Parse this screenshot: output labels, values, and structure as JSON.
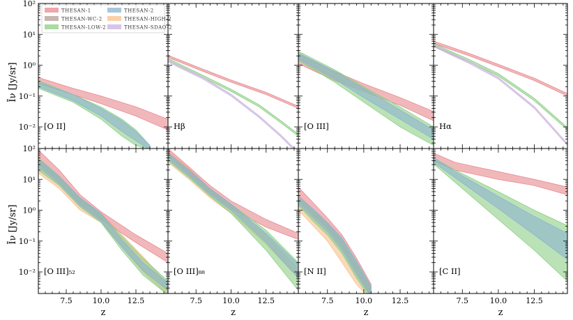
{
  "chart_data": {
    "type": "area",
    "layout": "2x4 grid of panels, shared axes",
    "xlabel": "z",
    "ylabel": "Īν [Jy/sr]",
    "xlim": [
      5.5,
      14.8
    ],
    "ylim_log10": [
      -2.7,
      2
    ],
    "x_ticks": [
      7.5,
      10.0,
      12.5
    ],
    "x_tick_labels": [
      "7.5",
      "10.0",
      "12.5"
    ],
    "y_ticks_log10": [
      -2,
      -1,
      0,
      1,
      2
    ],
    "y_tick_labels": [
      "10⁻²",
      "10⁻¹",
      "10⁰",
      "10¹",
      "10²"
    ],
    "legend": [
      {
        "name": "THESAN-1",
        "color": "#e8898e"
      },
      {
        "name": "THESAN-2",
        "color": "#8cb4cf"
      },
      {
        "name": "THESAN-WC-2",
        "color": "#b59d96"
      },
      {
        "name": "THESAN-HIGH-2",
        "color": "#f7c28c"
      },
      {
        "name": "THESAN-LOW-2",
        "color": "#8dcf85"
      },
      {
        "name": "THESAN-SDAO-2",
        "color": "#c9b2de"
      }
    ],
    "panels": [
      {
        "label": "[O II]",
        "series": [
          {
            "name": "THESAN-1",
            "x": [
              5.5,
              8,
              10,
              12.5,
              14.8
            ],
            "lo": [
              -0.6,
              -0.95,
              -1.25,
              -1.65,
              -2.1
            ],
            "hi": [
              -0.4,
              -0.75,
              -1.0,
              -1.35,
              -1.75
            ]
          },
          {
            "name": "THESAN-LOW-2",
            "x": [
              5.5,
              8,
              10,
              11.5,
              12.5,
              13.5
            ],
            "lo": [
              -0.75,
              -1.2,
              -1.75,
              -2.3,
              -2.6,
              -2.75
            ],
            "hi": [
              -0.5,
              -0.95,
              -1.35,
              -1.75,
              -2.1,
              -2.6
            ]
          },
          {
            "name": "THESAN-2",
            "x": [
              5.5,
              8,
              10,
              11.5,
              12.5,
              13.5
            ],
            "lo": [
              -0.7,
              -1.15,
              -1.65,
              -2.15,
              -2.45,
              -2.75
            ],
            "hi": [
              -0.55,
              -0.95,
              -1.4,
              -1.8,
              -2.15,
              -2.6
            ]
          }
        ]
      },
      {
        "label": "Hβ",
        "series": [
          {
            "name": "THESAN-1",
            "x": [
              5.5,
              8,
              10,
              12.5,
              14.8
            ],
            "lo": [
              0.25,
              -0.2,
              -0.55,
              -0.95,
              -1.4
            ],
            "hi": [
              0.32,
              -0.13,
              -0.48,
              -0.88,
              -1.33
            ]
          },
          {
            "name": "THESAN-LOW-2",
            "x": [
              5.5,
              8,
              10,
              12,
              13.5,
              14.8
            ],
            "lo": [
              0.15,
              -0.4,
              -0.85,
              -1.35,
              -1.85,
              -2.3
            ],
            "hi": [
              0.22,
              -0.33,
              -0.78,
              -1.28,
              -1.78,
              -2.23
            ]
          },
          {
            "name": "THESAN-SDAO-2",
            "x": [
              5.5,
              8,
              10,
              12,
              13.5,
              14.5
            ],
            "lo": [
              0.1,
              -0.45,
              -1.0,
              -1.7,
              -2.3,
              -2.75
            ],
            "hi": [
              0.16,
              -0.39,
              -0.94,
              -1.64,
              -2.24,
              -2.69
            ]
          }
        ]
      },
      {
        "label": "[O III]",
        "series": [
          {
            "name": "THESAN-1",
            "x": [
              5.5,
              8,
              10,
              12.5,
              14.8
            ],
            "lo": [
              0.05,
              -0.5,
              -0.85,
              -1.3,
              -1.8
            ],
            "hi": [
              0.35,
              -0.2,
              -0.6,
              -1.05,
              -1.5
            ]
          },
          {
            "name": "THESAN-LOW-2",
            "x": [
              5.5,
              8,
              10,
              12.5,
              14.8
            ],
            "lo": [
              0.15,
              -0.55,
              -1.2,
              -2.0,
              -2.6
            ],
            "hi": [
              0.45,
              -0.15,
              -0.7,
              -1.35,
              -2.0
            ]
          },
          {
            "name": "THESAN-2",
            "x": [
              5.5,
              8,
              10,
              12.5,
              14.8
            ],
            "lo": [
              0.2,
              -0.45,
              -1.05,
              -1.75,
              -2.4
            ],
            "hi": [
              0.4,
              -0.2,
              -0.75,
              -1.45,
              -2.1
            ]
          }
        ]
      },
      {
        "label": "Hα",
        "series": [
          {
            "name": "THESAN-1",
            "x": [
              5.5,
              8,
              10,
              12.5,
              14.8
            ],
            "lo": [
              0.7,
              0.3,
              -0.05,
              -0.5,
              -1.0
            ],
            "hi": [
              0.78,
              0.38,
              0.03,
              -0.42,
              -0.92
            ]
          },
          {
            "name": "THESAN-LOW-2",
            "x": [
              5.5,
              8,
              10,
              12.5,
              14.8
            ],
            "lo": [
              0.62,
              0.1,
              -0.35,
              -1.15,
              -2.1
            ],
            "hi": [
              0.7,
              0.18,
              -0.27,
              -1.07,
              -2.02
            ]
          },
          {
            "name": "THESAN-SDAO-2",
            "x": [
              5.5,
              8,
              10,
              12.5,
              14.8
            ],
            "lo": [
              0.6,
              0.05,
              -0.45,
              -1.4,
              -2.6
            ],
            "hi": [
              0.66,
              0.11,
              -0.39,
              -1.34,
              -2.54
            ]
          }
        ]
      },
      {
        "label": "[O III]₅₂",
        "series": [
          {
            "name": "THESAN-HIGH-2",
            "x": [
              5.5,
              7,
              8.5,
              10,
              11.5,
              13,
              14.8
            ],
            "lo": [
              1.2,
              0.7,
              0.0,
              -0.4,
              -1.2,
              -2.0,
              -2.75
            ],
            "hi": [
              1.7,
              1.1,
              0.4,
              -0.1,
              -0.8,
              -1.5,
              -2.4
            ]
          },
          {
            "name": "THESAN-1",
            "x": [
              5.5,
              7,
              8.5,
              10,
              12.5,
              14.8
            ],
            "lo": [
              1.5,
              0.9,
              0.2,
              -0.3,
              -1.05,
              -1.7
            ],
            "hi": [
              1.95,
              1.3,
              0.5,
              -0.05,
              -0.8,
              -1.4
            ]
          },
          {
            "name": "THESAN-LOW-2",
            "x": [
              5.5,
              7,
              8.5,
              10,
              11.5,
              13,
              14.8
            ],
            "lo": [
              1.3,
              0.8,
              0.1,
              -0.4,
              -1.3,
              -2.1,
              -2.75
            ],
            "hi": [
              1.7,
              1.1,
              0.4,
              -0.15,
              -0.85,
              -1.55,
              -2.3
            ]
          },
          {
            "name": "THESAN-2",
            "x": [
              5.5,
              7,
              8.5,
              10,
              11.5,
              13,
              14.8
            ],
            "lo": [
              1.4,
              0.85,
              0.15,
              -0.35,
              -1.2,
              -1.95,
              -2.6
            ]
          }
        ]
      },
      {
        "label": "[O III]₈₈",
        "series": [
          {
            "name": "THESAN-HIGH-2",
            "x": [
              5.5,
              7,
              8.5,
              10,
              12.5,
              14.8
            ],
            "lo": [
              1.55,
              1.0,
              0.4,
              -0.1,
              -1.1,
              -2.2
            ],
            "hi": [
              1.9,
              1.35,
              0.7,
              0.15,
              -0.8,
              -1.9
            ]
          },
          {
            "name": "THESAN-1",
            "x": [
              5.5,
              7,
              8.5,
              10,
              12.5,
              14.8
            ],
            "lo": [
              1.75,
              1.15,
              0.55,
              0.05,
              -0.55,
              -0.95
            ],
            "hi": [
              2.0,
              1.4,
              0.8,
              0.3,
              -0.3,
              -0.75
            ]
          },
          {
            "name": "THESAN-LOW-2",
            "x": [
              5.5,
              7,
              8.5,
              10,
              12.5,
              14.8
            ],
            "lo": [
              1.6,
              1.05,
              0.45,
              -0.1,
              -1.3,
              -2.6
            ],
            "hi": [
              1.85,
              1.3,
              0.7,
              0.2,
              -0.65,
              -1.7
            ]
          },
          {
            "name": "THESAN-2",
            "x": [
              5.5,
              7,
              8.5,
              10,
              12.5,
              14.8
            ],
            "lo": [
              1.65,
              1.1,
              0.5,
              0.0,
              -1.05,
              -2.2
            ],
            "hi": [
              1.85,
              1.3,
              0.7,
              0.2,
              -0.75,
              -1.75
            ]
          }
        ]
      },
      {
        "label": "[N II]",
        "series": [
          {
            "name": "THESAN-HIGH-2",
            "x": [
              5.5,
              6.5,
              7.5,
              8.5,
              9.5,
              10.5
            ],
            "lo": [
              0.0,
              -0.5,
              -1.0,
              -1.7,
              -2.4,
              -2.9
            ],
            "hi": [
              0.5,
              0.0,
              -0.4,
              -1.0,
              -1.8,
              -2.5
            ]
          },
          {
            "name": "THESAN-1",
            "x": [
              5.5,
              6.5,
              7.5,
              8.5,
              9.5,
              10.5
            ],
            "lo": [
              0.3,
              -0.15,
              -0.6,
              -1.2,
              -2.0,
              -2.8
            ],
            "hi": [
              0.75,
              0.25,
              -0.25,
              -0.8,
              -1.55,
              -2.4
            ]
          },
          {
            "name": "THESAN-LOW-2",
            "x": [
              5.5,
              6.5,
              7.5,
              8.5,
              9.5,
              10.5
            ],
            "lo": [
              0.15,
              -0.35,
              -0.8,
              -1.4,
              -2.2,
              -2.9
            ],
            "hi": [
              0.4,
              0.0,
              -0.45,
              -0.95,
              -1.7,
              -2.5
            ]
          },
          {
            "name": "THESAN-2",
            "x": [
              5.5,
              6.5,
              7.5,
              8.5,
              9.5,
              10.5
            ],
            "lo": [
              0.2,
              -0.25,
              -0.7,
              -1.3,
              -2.1,
              -2.8
            ],
            "hi": [
              0.45,
              0.05,
              -0.4,
              -0.9,
              -1.65,
              -2.45
            ]
          }
        ]
      },
      {
        "label": "[C II]",
        "series": [
          {
            "name": "THESAN-1",
            "x": [
              5.5,
              7,
              8.5,
              10,
              12.5,
              14.8
            ],
            "lo": [
              1.6,
              1.3,
              1.15,
              1.0,
              0.8,
              0.5
            ],
            "hi": [
              1.85,
              1.55,
              1.4,
              1.25,
              1.0,
              0.75
            ]
          },
          {
            "name": "THESAN-LOW-2",
            "x": [
              5.5,
              7,
              8.5,
              10,
              12.5,
              14.8
            ],
            "lo": [
              1.5,
              0.9,
              0.3,
              -0.3,
              -1.3,
              -2.3
            ],
            "hi": [
              1.7,
              1.3,
              0.95,
              0.6,
              0.0,
              -0.5
            ]
          },
          {
            "name": "THESAN-2",
            "x": [
              5.5,
              7,
              8.5,
              10,
              12.5,
              14.8
            ],
            "lo": [
              1.55,
              1.05,
              0.55,
              0.05,
              -0.8,
              -1.6
            ],
            "hi": [
              1.7,
              1.25,
              0.85,
              0.45,
              -0.2,
              -0.75
            ]
          }
        ]
      }
    ]
  }
}
